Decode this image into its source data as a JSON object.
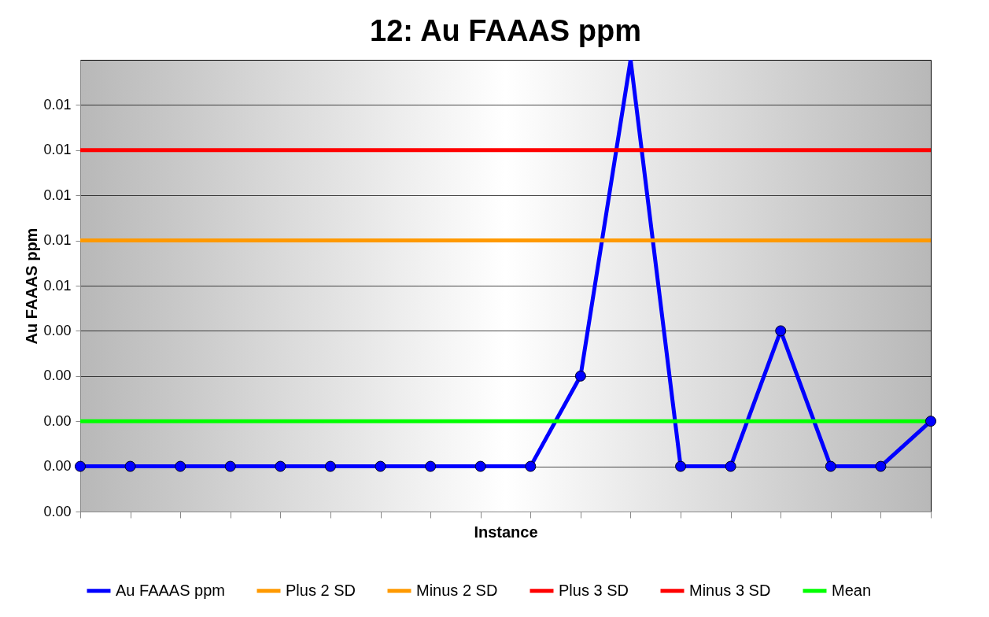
{
  "chart_data": {
    "type": "line",
    "title": "12: Au FAAAS ppm",
    "xlabel": "Instance",
    "ylabel": "Au FAAAS ppm",
    "categories": [
      null,
      null,
      null,
      null,
      null,
      null,
      null,
      null,
      null,
      null,
      null,
      null,
      null,
      null,
      null,
      null,
      null,
      null
    ],
    "series": [
      {
        "name": "Au FAAAS ppm",
        "color": "#0000ff",
        "marker": "circle",
        "values": [
          0.001,
          0.001,
          0.001,
          0.001,
          0.001,
          0.001,
          0.001,
          0.001,
          0.001,
          0.001,
          0.003,
          0.01,
          0.001,
          0.001,
          0.004,
          0.001,
          0.001,
          0.002
        ]
      },
      {
        "name": "Plus 2 SD",
        "color": "#ff9900",
        "marker": "none",
        "values": [
          0.006,
          0.006,
          0.006,
          0.006,
          0.006,
          0.006,
          0.006,
          0.006,
          0.006,
          0.006,
          0.006,
          0.006,
          0.006,
          0.006,
          0.006,
          0.006,
          0.006,
          0.006
        ]
      },
      {
        "name": "Minus 2 SD",
        "color": "#ff9900",
        "marker": "none",
        "values": [
          null,
          null,
          null,
          null,
          null,
          null,
          null,
          null,
          null,
          null,
          null,
          null,
          null,
          null,
          null,
          null,
          null,
          null
        ]
      },
      {
        "name": "Plus 3 SD",
        "color": "#ff0000",
        "marker": "none",
        "values": [
          0.008,
          0.008,
          0.008,
          0.008,
          0.008,
          0.008,
          0.008,
          0.008,
          0.008,
          0.008,
          0.008,
          0.008,
          0.008,
          0.008,
          0.008,
          0.008,
          0.008,
          0.008
        ]
      },
      {
        "name": "Minus 3 SD",
        "color": "#ff0000",
        "marker": "none",
        "values": [
          null,
          null,
          null,
          null,
          null,
          null,
          null,
          null,
          null,
          null,
          null,
          null,
          null,
          null,
          null,
          null,
          null,
          null
        ]
      },
      {
        "name": "Mean",
        "color": "#00ff00",
        "marker": "none",
        "values": [
          0.002,
          0.002,
          0.002,
          0.002,
          0.002,
          0.002,
          0.002,
          0.002,
          0.002,
          0.002,
          0.002,
          0.002,
          0.002,
          0.002,
          0.002,
          0.002,
          0.002,
          0.002
        ]
      }
    ],
    "ylim": [
      0,
      0.01
    ],
    "yticks": [
      {
        "value": 0,
        "label": "0.00"
      },
      {
        "value": 0.001,
        "label": "0.00"
      },
      {
        "value": 0.002,
        "label": "0.00"
      },
      {
        "value": 0.003,
        "label": "0.00"
      },
      {
        "value": 0.004,
        "label": "0.00"
      },
      {
        "value": 0.005,
        "label": "0.01"
      },
      {
        "value": 0.006,
        "label": "0.01"
      },
      {
        "value": 0.007,
        "label": "0.01"
      },
      {
        "value": 0.008,
        "label": "0.01"
      },
      {
        "value": 0.009,
        "label": "0.01"
      }
    ],
    "grid": "y",
    "legend": "bottom",
    "tick_labels": "y",
    "line_style": "solid"
  }
}
